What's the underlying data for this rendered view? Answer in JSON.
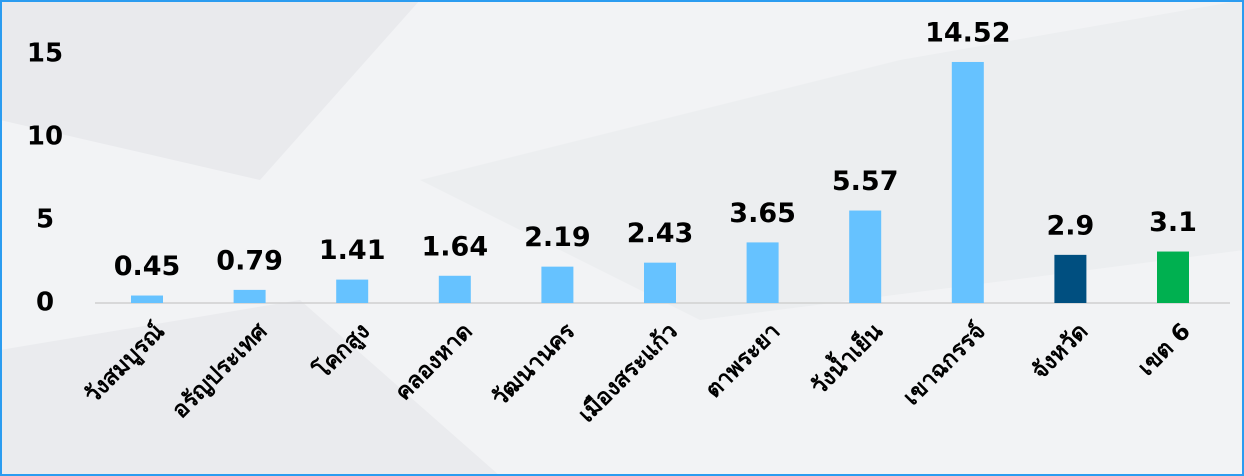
{
  "chart_data": {
    "type": "bar",
    "categories": [
      "วังสมบูรณ์",
      "อรัญประเทศ",
      "โคกสูง",
      "คลองหาด",
      "วัฒนานคร",
      "เมืองสระแก้ว",
      "ตาพระยา",
      "วังน้ำเย็น",
      "เขาฉกรรจ์",
      "จังหวัด",
      "เขต 6"
    ],
    "values": [
      0.45,
      0.79,
      1.41,
      1.64,
      2.19,
      2.43,
      3.65,
      5.57,
      14.52,
      2.9,
      3.1
    ],
    "colors": [
      "#66c2ff",
      "#66c2ff",
      "#66c2ff",
      "#66c2ff",
      "#66c2ff",
      "#66c2ff",
      "#66c2ff",
      "#66c2ff",
      "#66c2ff",
      "#004f80",
      "#00b050"
    ],
    "ylim": [
      0,
      15
    ],
    "yticks": [
      0,
      5,
      10,
      15
    ],
    "grid": false
  }
}
